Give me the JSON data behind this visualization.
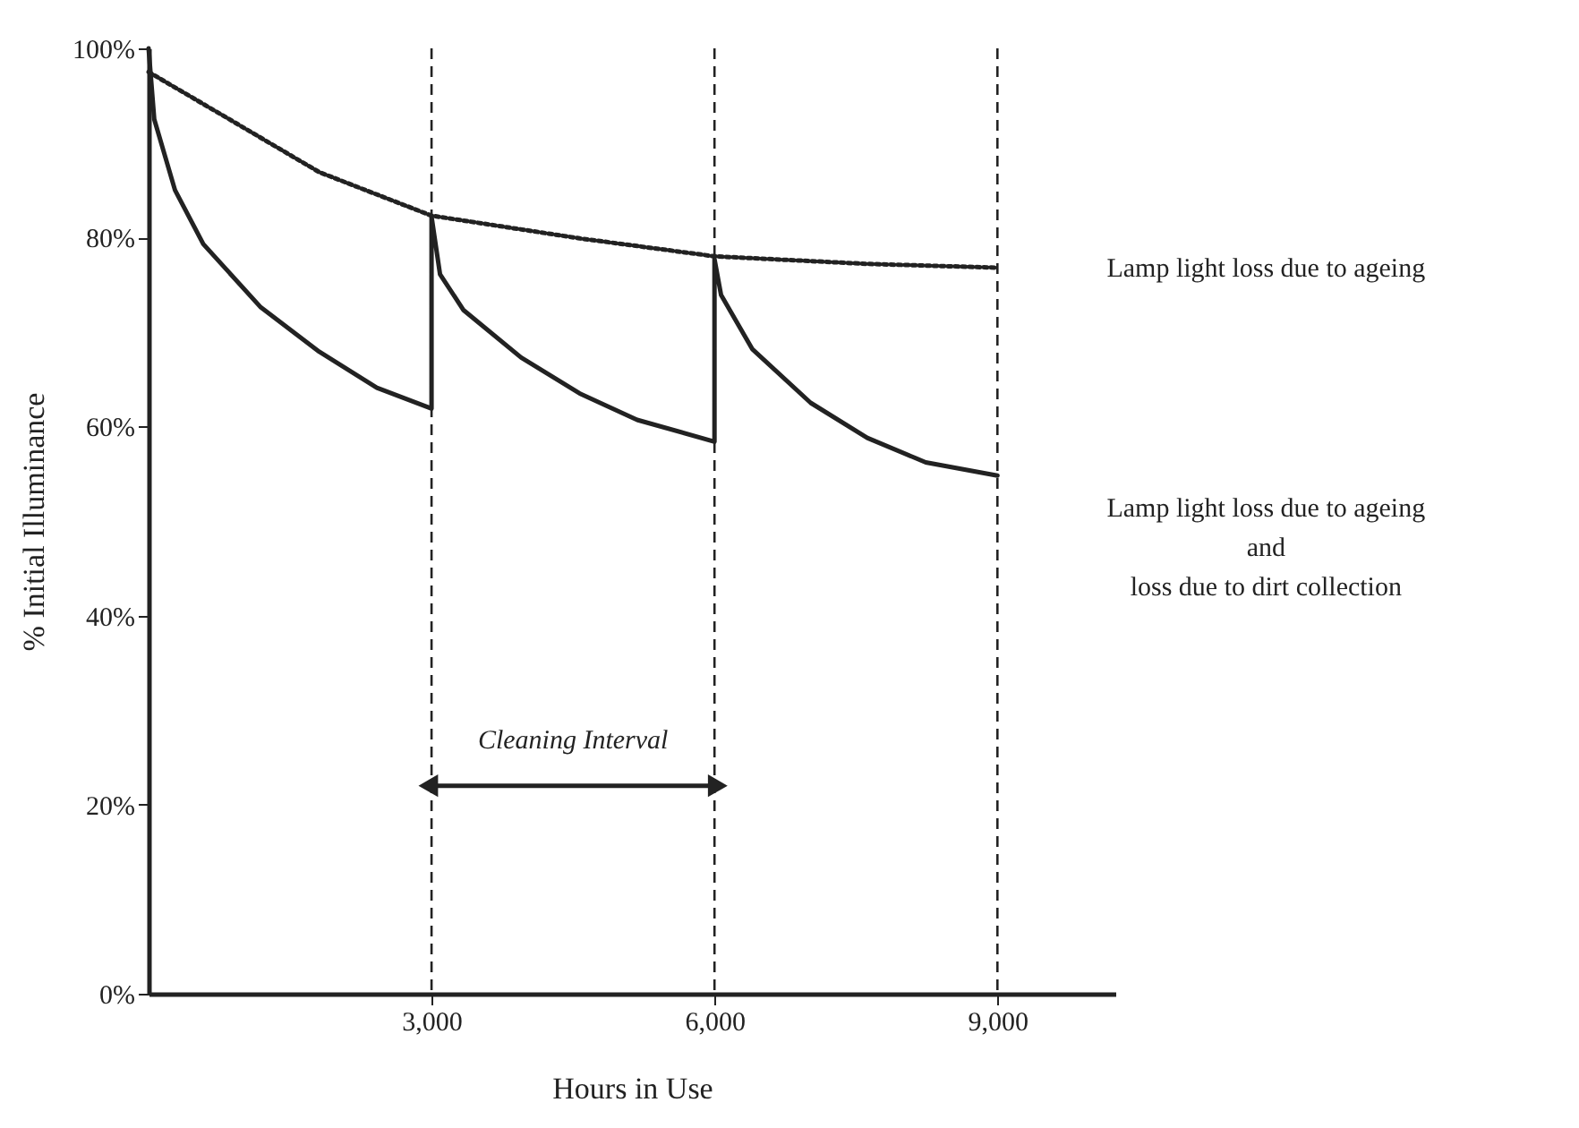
{
  "chart_data": {
    "type": "line",
    "xlabel": "Hours in Use",
    "ylabel": "% Initial Illuminance",
    "xlim": [
      0,
      10250
    ],
    "ylim": [
      0,
      100
    ],
    "xticks": [
      {
        "value": 3000,
        "label": "3,000"
      },
      {
        "value": 6000,
        "label": "6,000"
      },
      {
        "value": 9000,
        "label": "9,000"
      }
    ],
    "yticks": [
      {
        "value": 0,
        "label": "0%"
      },
      {
        "value": 20,
        "label": "20%"
      },
      {
        "value": 40,
        "label": "40%"
      },
      {
        "value": 60,
        "label": "60%"
      },
      {
        "value": 80,
        "label": "80%"
      },
      {
        "value": 100,
        "label": "100%"
      }
    ],
    "legend": false,
    "marker": "none",
    "series": [
      {
        "name": "Lamp light loss due to ageing",
        "color": "#222222",
        "line_style": "dotted",
        "x": [
          0,
          890,
          1810,
          3000,
          4570,
          6000,
          7620,
          9000
        ],
        "values": [
          97.5,
          92.3,
          86.9,
          82.3,
          79.9,
          78.0,
          77.2,
          76.8
        ]
      },
      {
        "name": "Lamp light loss due to ageing\nand\nloss due to dirt collection",
        "color": "#222222",
        "line_style": "solid",
        "x": [
          0,
          0,
          60,
          280,
          580,
          1190,
          1810,
          2420,
          3000,
          3000,
          3090,
          3340,
          3950,
          4570,
          5180,
          6000,
          6000,
          6070,
          6400,
          7020,
          7620,
          8240,
          9000
        ],
        "values": [
          100,
          100,
          92.5,
          85.0,
          79.3,
          72.6,
          67.9,
          64.1,
          61.9,
          82.2,
          76.1,
          72.3,
          67.3,
          63.5,
          60.7,
          58.4,
          77.7,
          73.9,
          68.2,
          62.5,
          58.8,
          56.2,
          54.8
        ]
      }
    ],
    "ref_lines": [
      {
        "axis": "x",
        "value": 3000,
        "line_style": "dashed"
      },
      {
        "axis": "x",
        "value": 6000,
        "line_style": "dashed"
      },
      {
        "axis": "x",
        "value": 9000,
        "line_style": "dashed"
      }
    ],
    "annotations": [
      "Cleaning Interval"
    ]
  }
}
